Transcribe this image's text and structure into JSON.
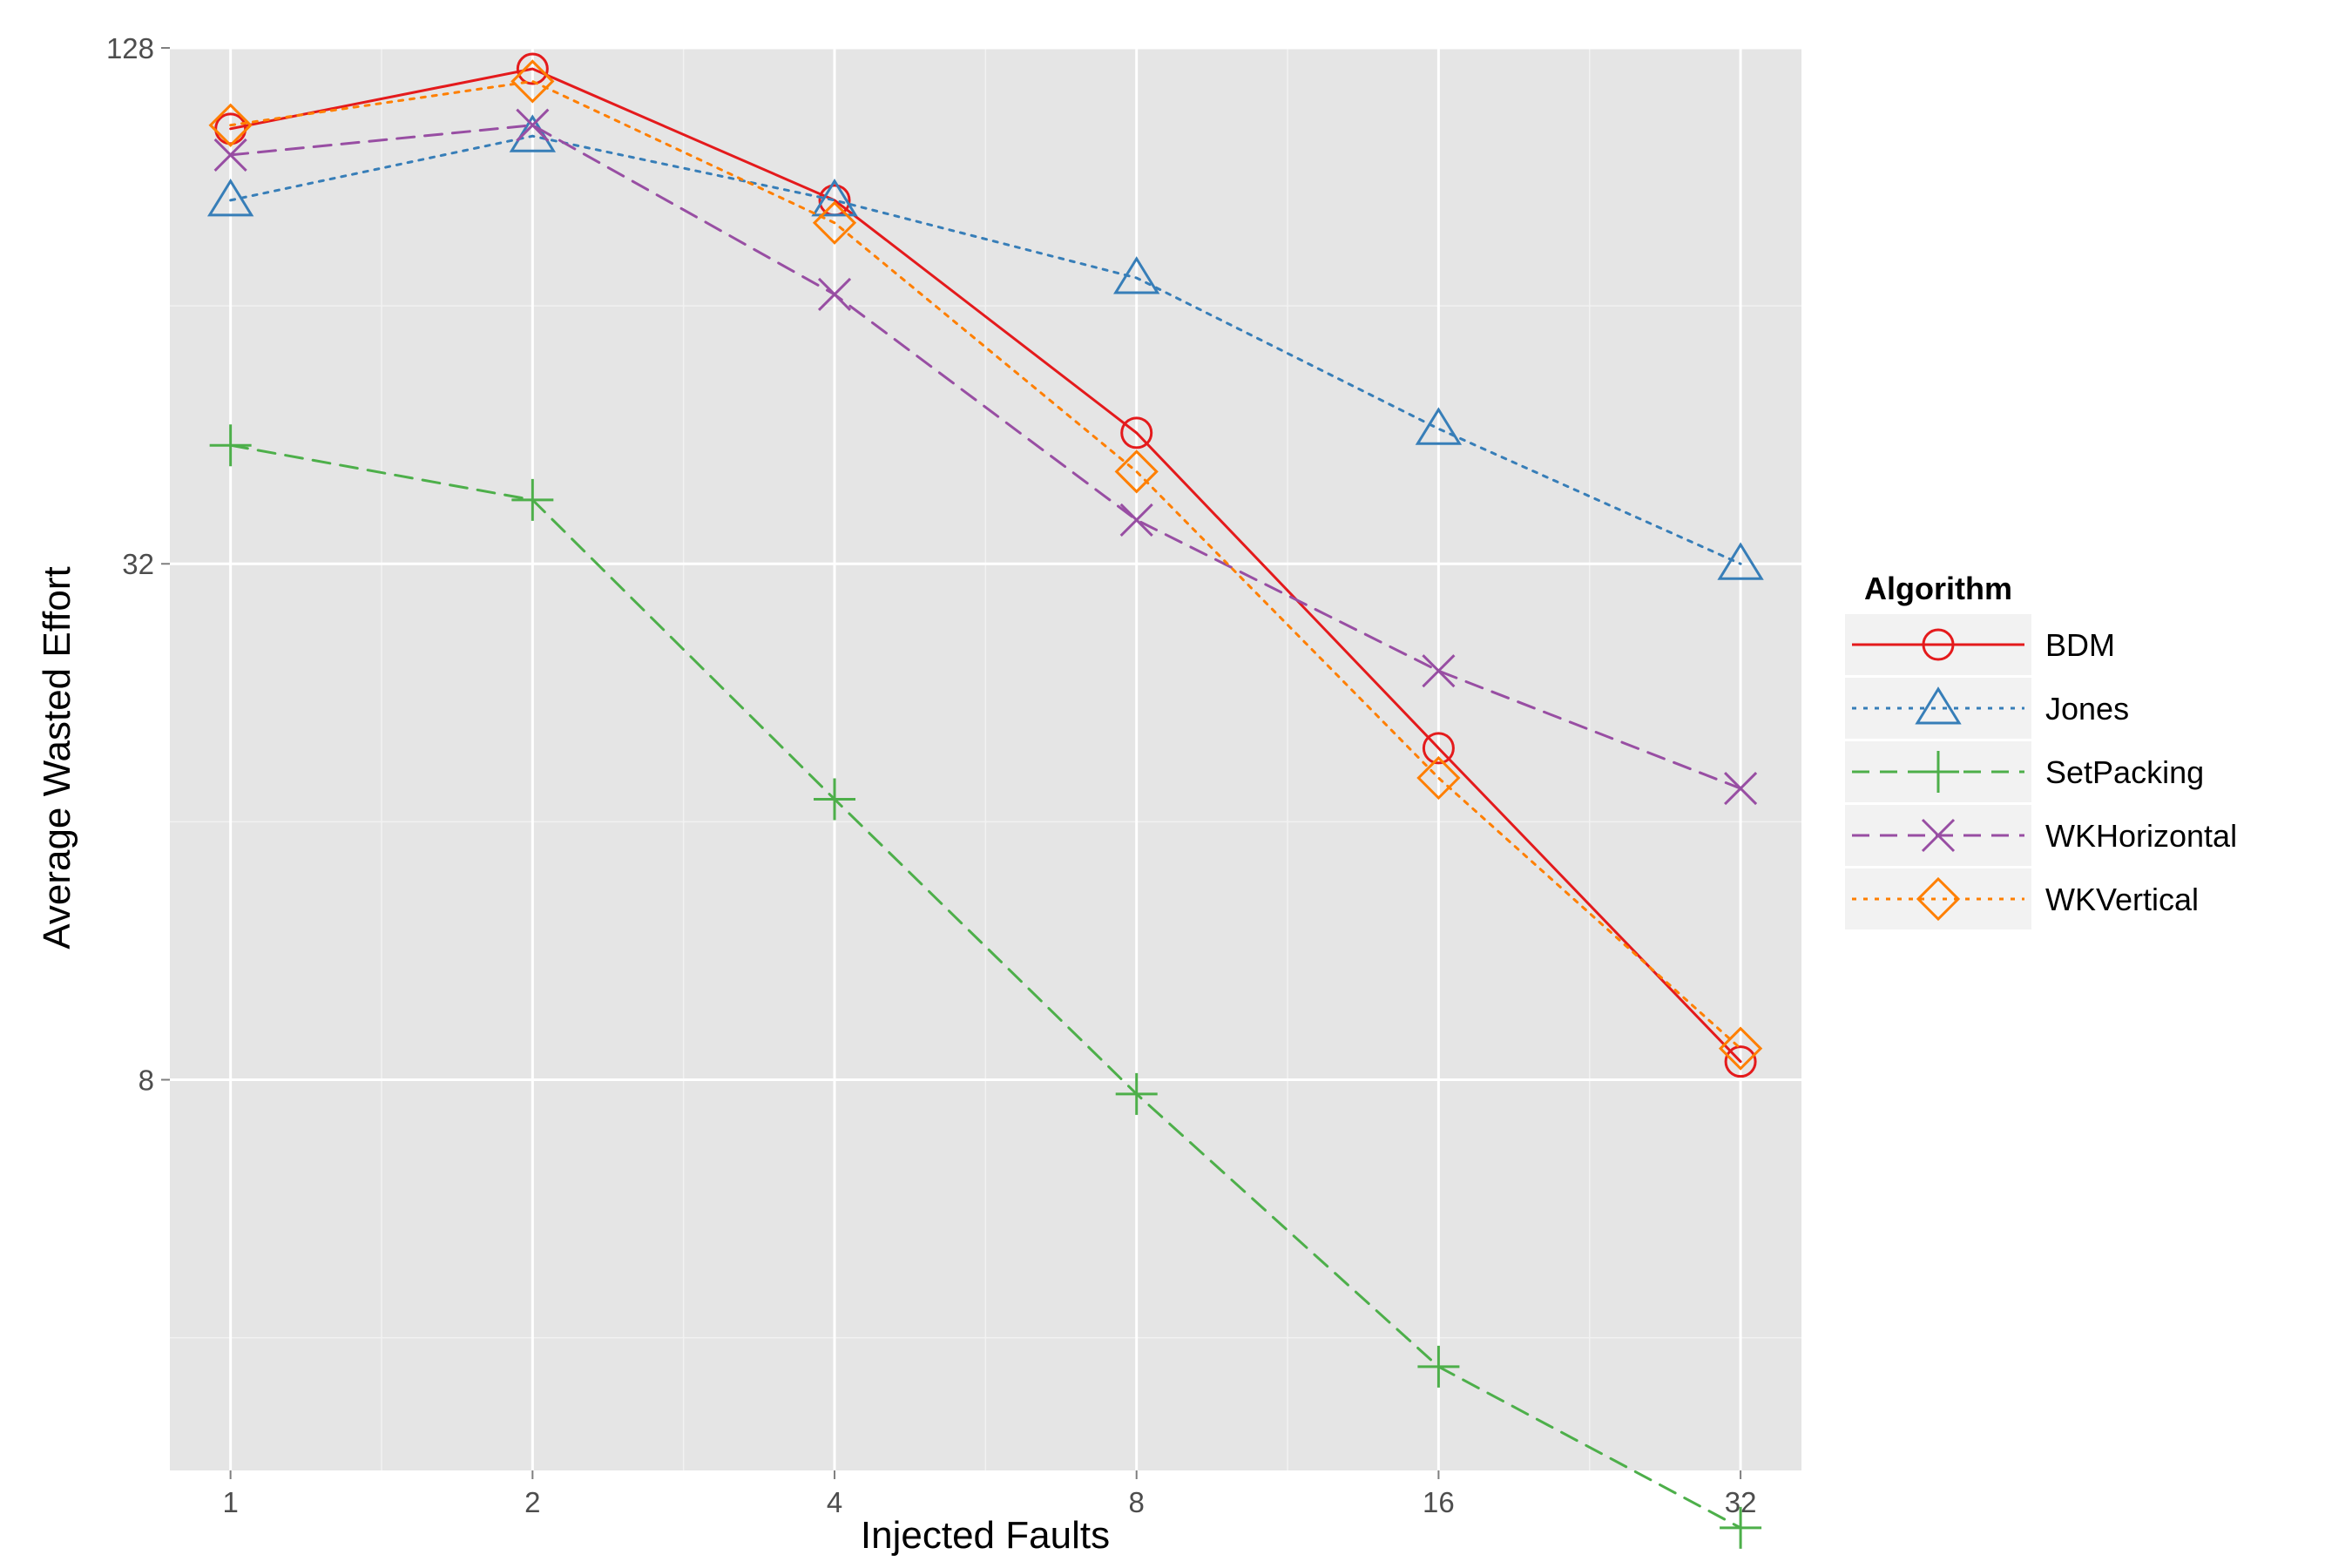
{
  "chart_data": {
    "type": "line",
    "xlabel": "Injected Faults",
    "ylabel": "Average Wasted Effort",
    "x_scale": "log2",
    "y_scale": "log2",
    "x": [
      1,
      2,
      4,
      8,
      16,
      32
    ],
    "x_tick_labels": [
      "1",
      "2",
      "4",
      "8",
      "16",
      "32"
    ],
    "y_ticks": [
      8,
      32,
      128
    ],
    "y_tick_labels": [
      "8",
      "32",
      "128"
    ],
    "xlim": [
      0.87,
      36.8
    ],
    "ylim": [
      2.8,
      128
    ],
    "grid": true,
    "legend": {
      "title": "Algorithm",
      "position": "right"
    },
    "series": [
      {
        "name": "BDM",
        "color": "#e41a1c",
        "line": "solid",
        "marker": "circle",
        "values": [
          103,
          121,
          85,
          45.5,
          19.5,
          8.4
        ]
      },
      {
        "name": "Jones",
        "color": "#377eb8",
        "line": "dotted",
        "marker": "triangle",
        "values": [
          85,
          101,
          85,
          69,
          46,
          32
        ]
      },
      {
        "name": "SetPacking",
        "color": "#4daf4a",
        "line": "dashed",
        "marker": "plus",
        "values": [
          44,
          38,
          17,
          7.7,
          3.7,
          2.4
        ]
      },
      {
        "name": "WKHorizontal",
        "color": "#984ea3",
        "line": "dashed",
        "marker": "x",
        "values": [
          96,
          104,
          66,
          36,
          24,
          17.5
        ]
      },
      {
        "name": "WKVertical",
        "color": "#ff7f00",
        "line": "dotted",
        "marker": "diamond",
        "values": [
          104,
          117,
          80,
          41,
          18,
          8.7
        ]
      }
    ]
  }
}
